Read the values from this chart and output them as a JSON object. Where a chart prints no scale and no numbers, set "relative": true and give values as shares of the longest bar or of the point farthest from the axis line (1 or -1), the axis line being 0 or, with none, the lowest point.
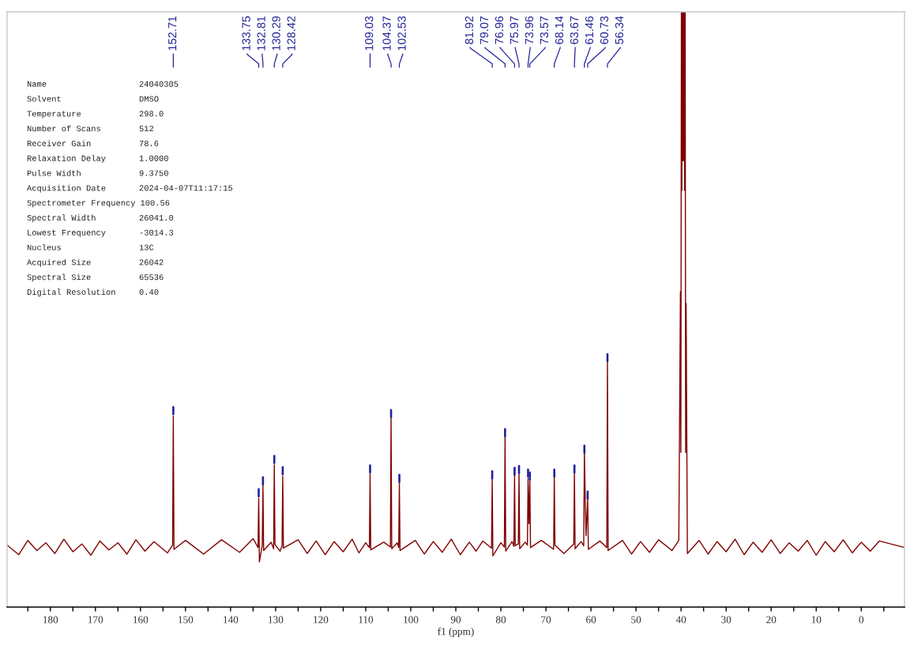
{
  "chart_data": {
    "type": "line",
    "relative": true,
    "tick_labels": "x",
    "line_style": "solid",
    "xlabel": "f1 (ppm)",
    "xlim": [
      189.6,
      -9.6
    ],
    "xticks": [
      {
        "value": 185,
        "label": null
      },
      180,
      {
        "value": 175,
        "label": null
      },
      170,
      {
        "value": 165,
        "label": null
      },
      160,
      {
        "value": 155,
        "label": null
      },
      150,
      {
        "value": 145,
        "label": null
      },
      140,
      {
        "value": 135,
        "label": null
      },
      130,
      {
        "value": 125,
        "label": null
      },
      120,
      {
        "value": 115,
        "label": null
      },
      110,
      {
        "value": 105,
        "label": null
      },
      100,
      {
        "value": 95,
        "label": null
      },
      90,
      {
        "value": 85,
        "label": null
      },
      80,
      {
        "value": 75,
        "label": null
      },
      70,
      {
        "value": 65,
        "label": null
      },
      60,
      {
        "value": 55,
        "label": null
      },
      50,
      {
        "value": 45,
        "label": null
      },
      40,
      {
        "value": 35,
        "label": null
      },
      30,
      {
        "value": 25,
        "label": null
      },
      20,
      {
        "value": 15,
        "label": null
      },
      10,
      {
        "value": 5,
        "label": null
      },
      0,
      {
        "value": -5,
        "label": null
      }
    ],
    "series": [
      {
        "color": "#800000",
        "x": [
          189.6,
          187,
          185,
          183,
          181,
          179,
          177,
          175,
          173,
          171,
          169,
          167,
          165,
          163,
          161,
          159,
          157,
          154,
          152.86,
          152.71,
          152.56,
          150,
          146,
          142,
          138,
          135,
          133.9,
          133.75,
          133.6,
          132.96,
          132.81,
          132.66,
          131,
          130.44,
          130.29,
          130.14,
          129,
          128.57,
          128.42,
          128.27,
          125,
          123,
          121,
          119,
          117,
          115,
          113,
          111.5,
          110,
          109.18,
          109.03,
          108.88,
          106,
          104.52,
          104.37,
          104.22,
          103,
          102.68,
          102.53,
          102.38,
          99,
          97,
          95,
          93,
          91,
          89,
          87,
          85.5,
          84,
          82.07,
          81.92,
          81.77,
          80,
          79.22,
          79.07,
          78.92,
          77.5,
          77.11,
          76.96,
          76.81,
          76.12,
          75.97,
          75.82,
          74.6,
          74.11,
          73.96,
          73.77,
          73.57,
          73.42,
          71,
          68.29,
          68.14,
          67.99,
          66,
          63.82,
          63.67,
          63.52,
          62.2,
          61.61,
          61.46,
          61.1,
          60.73,
          60.58,
          58,
          56.49,
          56.34,
          56.19,
          53,
          51,
          49,
          47,
          45,
          42,
          40.5,
          40.14,
          40.04,
          39.93,
          39.83,
          39.72,
          39.62,
          39.51,
          39.41,
          39.3,
          39.2,
          39.09,
          38.98,
          38.88,
          38.6,
          36,
          34,
          32,
          30,
          28,
          26,
          24,
          22,
          20,
          18,
          16,
          14,
          12,
          10,
          8,
          6,
          4,
          2,
          0,
          -2,
          -4,
          -9.6
        ],
        "values": [
          0.104,
          0.088,
          0.112,
          0.095,
          0.108,
          0.09,
          0.114,
          0.093,
          0.106,
          0.087,
          0.111,
          0.096,
          0.108,
          0.089,
          0.113,
          0.094,
          0.11,
          0.091,
          0.104,
          0.321,
          0.097,
          0.112,
          0.089,
          0.113,
          0.092,
          0.115,
          0.1,
          0.183,
          0.076,
          0.104,
          0.205,
          0.095,
          0.109,
          0.098,
          0.239,
          0.105,
          0.094,
          0.103,
          0.22,
          0.099,
          0.113,
          0.09,
          0.111,
          0.088,
          0.11,
          0.093,
          0.114,
          0.091,
          0.108,
          0.1,
          0.224,
          0.096,
          0.109,
          0.101,
          0.317,
          0.098,
          0.108,
          0.1,
          0.208,
          0.095,
          0.112,
          0.089,
          0.11,
          0.092,
          0.114,
          0.088,
          0.109,
          0.094,
          0.111,
          0.099,
          0.215,
          0.086,
          0.108,
          0.101,
          0.287,
          0.094,
          0.11,
          0.102,
          0.22,
          0.103,
          0.106,
          0.223,
          0.098,
          0.109,
          0.104,
          0.216,
          0.14,
          0.212,
          0.1,
          0.112,
          0.097,
          0.219,
          0.104,
          0.09,
          0.106,
          0.226,
          0.098,
          0.11,
          0.103,
          0.259,
          0.12,
          0.181,
          0.097,
          0.111,
          0.1,
          0.413,
          0.095,
          0.112,
          0.089,
          0.11,
          0.092,
          0.113,
          0.095,
          0.112,
          0.53,
          0.26,
          1,
          0.7,
          1,
          0.75,
          1,
          0.75,
          1,
          0.7,
          1,
          0.26,
          0.51,
          0.09,
          0.112,
          0.089,
          0.11,
          0.093,
          0.114,
          0.088,
          0.109,
          0.092,
          0.113,
          0.09,
          0.108,
          0.094,
          0.112,
          0.087,
          0.11,
          0.093,
          0.113,
          0.091,
          0.109,
          0.094,
          0.111,
          0.1
        ]
      },
      {
        "color": "#23239a",
        "x": [
          152.71,
          152.71
        ],
        "values": [
          0.324,
          0.336
        ]
      },
      {
        "color": "#23239a",
        "x": [
          133.75,
          133.75
        ],
        "values": [
          0.186,
          0.198
        ]
      },
      {
        "color": "#23239a",
        "x": [
          132.81,
          132.81
        ],
        "values": [
          0.206,
          0.218
        ]
      },
      {
        "color": "#23239a",
        "x": [
          130.29,
          130.29
        ],
        "values": [
          0.242,
          0.254
        ]
      },
      {
        "color": "#23239a",
        "x": [
          128.42,
          128.42
        ],
        "values": [
          0.223,
          0.235
        ]
      },
      {
        "color": "#23239a",
        "x": [
          109.03,
          109.03
        ],
        "values": [
          0.226,
          0.238
        ]
      },
      {
        "color": "#23239a",
        "x": [
          104.37,
          104.37
        ],
        "values": [
          0.319,
          0.331
        ]
      },
      {
        "color": "#23239a",
        "x": [
          102.53,
          102.53
        ],
        "values": [
          0.21,
          0.222
        ]
      },
      {
        "color": "#23239a",
        "x": [
          81.92,
          81.92
        ],
        "values": [
          0.216,
          0.228
        ]
      },
      {
        "color": "#23239a",
        "x": [
          79.07,
          79.07
        ],
        "values": [
          0.287,
          0.299
        ]
      },
      {
        "color": "#23239a",
        "x": [
          76.96,
          76.96
        ],
        "values": [
          0.222,
          0.234
        ]
      },
      {
        "color": "#23239a",
        "x": [
          75.97,
          75.97
        ],
        "values": [
          0.225,
          0.237
        ]
      },
      {
        "color": "#23239a",
        "x": [
          73.96,
          73.96
        ],
        "values": [
          0.219,
          0.231
        ]
      },
      {
        "color": "#23239a",
        "x": [
          73.57,
          73.57
        ],
        "values": [
          0.214,
          0.226
        ]
      },
      {
        "color": "#23239a",
        "x": [
          68.14,
          68.14
        ],
        "values": [
          0.219,
          0.231
        ]
      },
      {
        "color": "#23239a",
        "x": [
          63.67,
          63.67
        ],
        "values": [
          0.226,
          0.238
        ]
      },
      {
        "color": "#23239a",
        "x": [
          61.46,
          61.46
        ],
        "values": [
          0.259,
          0.271
        ]
      },
      {
        "color": "#23239a",
        "x": [
          60.73,
          60.73
        ],
        "values": [
          0.182,
          0.194
        ]
      },
      {
        "color": "#23239a",
        "x": [
          56.34,
          56.34
        ],
        "values": [
          0.413,
          0.425
        ]
      }
    ],
    "annotations": [
      "152.71",
      "133.75",
      "132.81",
      "130.29",
      "128.42",
      "109.03",
      "104.37",
      "102.53",
      "81.92",
      "79.07",
      "76.96",
      "75.97",
      "73.96",
      "73.57",
      "68.14",
      "63.67",
      "61.46",
      "60.73",
      "56.34",
      "Name",
      "24040305",
      "Solvent",
      "DMSO",
      "Temperature",
      "298.0",
      "Number of Scans",
      "512",
      "Receiver Gain",
      "78.6",
      "Relaxation Delay",
      "1.0000",
      "Pulse Width",
      "9.3750",
      "Acquisition Date",
      "2024-04-07T11:17:15",
      "Spectrometer Frequency",
      "100.56",
      "Spectral Width",
      "26041.0",
      "Lowest Frequency",
      "-3014.3",
      "Nucleus",
      "13C",
      "Acquired Size",
      "26042",
      "Spectral Size",
      "65536",
      "Digital Resolution",
      "0.40"
    ]
  }
}
